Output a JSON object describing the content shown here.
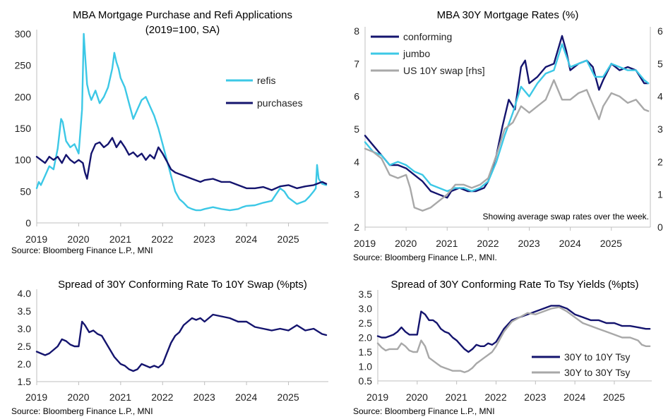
{
  "chart_data": [
    {
      "id": "c1",
      "type": "line",
      "title_lines": [
        "MBA Mortgage Purchase and Refi Applications",
        "(2019=100, SA)"
      ],
      "source": "Source: Bloomberg Finance L.P., MNI",
      "xlim": [
        2019,
        2025.95
      ],
      "xticks": [
        "2019",
        "2020",
        "2021",
        "2022",
        "2023",
        "2024",
        "2025"
      ],
      "ylim": [
        0,
        300
      ],
      "yticks": [
        0,
        50,
        100,
        150,
        200,
        250,
        300
      ],
      "grid": false,
      "legend_position": "top-right",
      "series": [
        {
          "name": "refis",
          "color": "#3cc8e6",
          "x": [
            2019.0,
            2019.05,
            2019.1,
            2019.2,
            2019.3,
            2019.4,
            2019.5,
            2019.58,
            2019.62,
            2019.7,
            2019.8,
            2019.9,
            2020.0,
            2020.08,
            2020.12,
            2020.15,
            2020.2,
            2020.25,
            2020.3,
            2020.4,
            2020.5,
            2020.6,
            2020.7,
            2020.8,
            2020.85,
            2020.9,
            2020.95,
            2021.0,
            2021.1,
            2021.2,
            2021.3,
            2021.4,
            2021.5,
            2021.6,
            2021.7,
            2021.8,
            2021.9,
            2022.0,
            2022.1,
            2022.2,
            2022.3,
            2022.4,
            2022.5,
            2022.6,
            2022.7,
            2022.8,
            2022.9,
            2023.0,
            2023.2,
            2023.4,
            2023.6,
            2023.8,
            2023.9,
            2024.0,
            2024.2,
            2024.4,
            2024.6,
            2024.7,
            2024.8,
            2024.9,
            2025.0,
            2025.2,
            2025.4,
            2025.5,
            2025.6,
            2025.65,
            2025.68,
            2025.72,
            2025.8,
            2025.9
          ],
          "y": [
            55,
            65,
            60,
            75,
            90,
            85,
            118,
            165,
            160,
            130,
            120,
            125,
            110,
            180,
            300,
            270,
            220,
            205,
            195,
            210,
            190,
            200,
            215,
            245,
            270,
            255,
            245,
            230,
            215,
            190,
            165,
            180,
            195,
            200,
            185,
            170,
            150,
            125,
            100,
            75,
            50,
            38,
            32,
            25,
            22,
            20,
            20,
            22,
            25,
            22,
            20,
            22,
            25,
            27,
            28,
            32,
            35,
            45,
            55,
            50,
            40,
            30,
            35,
            42,
            50,
            55,
            92,
            70,
            62,
            60
          ]
        },
        {
          "name": "purchases",
          "color": "#14146e",
          "x": [
            2019.0,
            2019.1,
            2019.2,
            2019.3,
            2019.4,
            2019.5,
            2019.6,
            2019.7,
            2019.8,
            2019.9,
            2020.0,
            2020.1,
            2020.15,
            2020.2,
            2020.3,
            2020.4,
            2020.5,
            2020.6,
            2020.7,
            2020.8,
            2020.9,
            2021.0,
            2021.1,
            2021.2,
            2021.3,
            2021.4,
            2021.5,
            2021.6,
            2021.7,
            2021.8,
            2021.9,
            2022.0,
            2022.1,
            2022.2,
            2022.3,
            2022.5,
            2022.7,
            2022.9,
            2023.0,
            2023.2,
            2023.4,
            2023.6,
            2023.8,
            2024.0,
            2024.2,
            2024.4,
            2024.6,
            2024.8,
            2025.0,
            2025.2,
            2025.4,
            2025.6,
            2025.8,
            2025.9
          ],
          "y": [
            105,
            100,
            95,
            105,
            100,
            105,
            95,
            108,
            100,
            95,
            100,
            95,
            80,
            70,
            110,
            125,
            128,
            120,
            125,
            135,
            120,
            130,
            120,
            108,
            112,
            105,
            110,
            100,
            108,
            102,
            120,
            110,
            98,
            85,
            80,
            75,
            70,
            65,
            68,
            70,
            65,
            65,
            60,
            55,
            55,
            57,
            52,
            58,
            60,
            55,
            58,
            60,
            65,
            62
          ]
        }
      ]
    },
    {
      "id": "c2",
      "type": "line",
      "title_lines": [
        "MBA 30Y Mortgage Rates (%)"
      ],
      "source": "Source: Bloomberg Finance L.P., MNI.",
      "note": "Showing average swap rates over the week.",
      "xlim": [
        2019,
        2025.95
      ],
      "xticks": [
        "2019",
        "2020",
        "2021",
        "2022",
        "2023",
        "2024",
        "2025"
      ],
      "ylim": [
        2,
        8
      ],
      "yticks": [
        2,
        3,
        4,
        5,
        6,
        7,
        8
      ],
      "y2lim": [
        0,
        6
      ],
      "y2ticks": [
        0,
        1,
        2,
        3,
        4,
        5,
        6
      ],
      "grid": false,
      "legend_position": "top-left",
      "series": [
        {
          "name": "conforming",
          "color": "#14146e",
          "axis": "left",
          "x": [
            2019.0,
            2019.2,
            2019.4,
            2019.6,
            2019.8,
            2020.0,
            2020.2,
            2020.4,
            2020.6,
            2020.8,
            2021.0,
            2021.1,
            2021.3,
            2021.5,
            2021.7,
            2021.9,
            2022.0,
            2022.2,
            2022.35,
            2022.5,
            2022.65,
            2022.8,
            2022.9,
            2023.0,
            2023.2,
            2023.4,
            2023.6,
            2023.8,
            2023.9,
            2024.0,
            2024.2,
            2024.4,
            2024.55,
            2024.7,
            2024.8,
            2025.0,
            2025.2,
            2025.4,
            2025.6,
            2025.8,
            2025.9
          ],
          "y": [
            4.8,
            4.5,
            4.2,
            3.9,
            3.9,
            3.8,
            3.6,
            3.4,
            3.1,
            3.0,
            2.9,
            3.1,
            3.2,
            3.1,
            3.1,
            3.2,
            3.4,
            4.2,
            5.1,
            5.9,
            5.6,
            6.9,
            7.1,
            6.4,
            6.6,
            6.9,
            7.0,
            7.85,
            7.4,
            6.8,
            7.0,
            7.1,
            6.9,
            6.2,
            6.5,
            7.0,
            6.8,
            6.9,
            6.8,
            6.4,
            6.4
          ]
        },
        {
          "name": "jumbo",
          "color": "#3cc8e6",
          "axis": "left",
          "x": [
            2019.0,
            2019.2,
            2019.4,
            2019.6,
            2019.8,
            2020.0,
            2020.2,
            2020.4,
            2020.6,
            2020.8,
            2021.0,
            2021.2,
            2021.4,
            2021.6,
            2021.8,
            2022.0,
            2022.2,
            2022.4,
            2022.6,
            2022.8,
            2023.0,
            2023.2,
            2023.4,
            2023.6,
            2023.8,
            2024.0,
            2024.2,
            2024.4,
            2024.6,
            2024.8,
            2025.0,
            2025.2,
            2025.4,
            2025.6,
            2025.8,
            2025.9
          ],
          "y": [
            4.6,
            4.3,
            4.2,
            3.9,
            4.0,
            3.9,
            3.7,
            3.6,
            3.3,
            3.2,
            3.1,
            3.2,
            3.2,
            3.1,
            3.2,
            3.4,
            4.0,
            4.8,
            5.5,
            6.3,
            6.0,
            6.4,
            6.7,
            6.8,
            7.6,
            6.9,
            7.0,
            7.1,
            6.6,
            6.6,
            7.0,
            6.9,
            6.8,
            6.8,
            6.5,
            6.4
          ]
        },
        {
          "name": "US 10Y swap [rhs]",
          "color": "#a8a8a8",
          "axis": "right",
          "x": [
            2019.0,
            2019.2,
            2019.4,
            2019.6,
            2019.8,
            2020.0,
            2020.1,
            2020.2,
            2020.4,
            2020.6,
            2020.8,
            2021.0,
            2021.2,
            2021.4,
            2021.6,
            2021.8,
            2022.0,
            2022.2,
            2022.4,
            2022.6,
            2022.8,
            2023.0,
            2023.2,
            2023.4,
            2023.6,
            2023.8,
            2024.0,
            2024.2,
            2024.4,
            2024.6,
            2024.7,
            2024.8,
            2025.0,
            2025.2,
            2025.4,
            2025.6,
            2025.8,
            2025.9
          ],
          "y": [
            2.4,
            2.3,
            2.1,
            1.6,
            1.5,
            1.6,
            1.2,
            0.6,
            0.5,
            0.6,
            0.8,
            1.0,
            1.3,
            1.3,
            1.2,
            1.3,
            1.5,
            2.2,
            3.0,
            3.2,
            3.7,
            3.5,
            3.7,
            3.9,
            4.5,
            3.9,
            3.9,
            4.1,
            4.2,
            3.6,
            3.3,
            3.7,
            4.1,
            4.0,
            3.8,
            3.9,
            3.6,
            3.55
          ]
        }
      ]
    },
    {
      "id": "c3",
      "type": "line",
      "title_lines": [
        "Spread of 30Y Conforming Rate To 10Y Swap (%pts)"
      ],
      "source": "Source: Bloomberg Finance L.P., MNI",
      "xlim": [
        2019,
        2025.95
      ],
      "xticks": [
        "2019",
        "2020",
        "2021",
        "2022",
        "2023",
        "2024",
        "2025"
      ],
      "ylim": [
        1.5,
        4.0
      ],
      "yticks": [
        "1.5",
        "2.0",
        "2.5",
        "3.0",
        "3.5",
        "4.0"
      ],
      "grid": false,
      "series": [
        {
          "name": "",
          "color": "#14146e",
          "x": [
            2019.0,
            2019.1,
            2019.2,
            2019.3,
            2019.4,
            2019.5,
            2019.6,
            2019.7,
            2019.8,
            2019.9,
            2020.0,
            2020.08,
            2020.15,
            2020.25,
            2020.35,
            2020.45,
            2020.55,
            2020.7,
            2020.85,
            2021.0,
            2021.1,
            2021.2,
            2021.3,
            2021.4,
            2021.5,
            2021.6,
            2021.7,
            2021.8,
            2021.9,
            2022.0,
            2022.1,
            2022.2,
            2022.3,
            2022.4,
            2022.5,
            2022.6,
            2022.7,
            2022.8,
            2022.9,
            2023.0,
            2023.2,
            2023.4,
            2023.6,
            2023.8,
            2024.0,
            2024.2,
            2024.4,
            2024.6,
            2024.8,
            2025.0,
            2025.2,
            2025.4,
            2025.6,
            2025.8,
            2025.9
          ],
          "y": [
            2.35,
            2.3,
            2.25,
            2.3,
            2.4,
            2.5,
            2.7,
            2.65,
            2.55,
            2.5,
            2.5,
            3.2,
            3.1,
            2.9,
            2.95,
            2.85,
            2.8,
            2.5,
            2.2,
            2.0,
            1.95,
            1.85,
            1.8,
            1.85,
            2.0,
            1.95,
            1.9,
            1.95,
            1.9,
            2.0,
            2.3,
            2.6,
            2.8,
            2.9,
            3.1,
            3.2,
            3.3,
            3.25,
            3.3,
            3.2,
            3.4,
            3.35,
            3.3,
            3.2,
            3.2,
            3.05,
            3.0,
            2.95,
            3.0,
            2.95,
            3.1,
            2.95,
            3.0,
            2.85,
            2.82
          ]
        }
      ]
    },
    {
      "id": "c4",
      "type": "line",
      "title_lines": [
        "Spread of 30Y Conforming Rate To Tsy Yields (%pts)"
      ],
      "source": "Source: Bloomberg Finance L.P., MNI",
      "xlim": [
        2019,
        2025.95
      ],
      "xticks": [
        "2019",
        "2020",
        "2021",
        "2022",
        "2023",
        "2024",
        "2025"
      ],
      "ylim": [
        0.5,
        3.5
      ],
      "yticks": [
        "0.5",
        "1.0",
        "1.5",
        "2.0",
        "2.5",
        "3.0",
        "3.5"
      ],
      "grid": false,
      "legend_position": "bottom-right",
      "series": [
        {
          "name": "30Y to 10Y Tsy",
          "color": "#14146e",
          "x": [
            2019.0,
            2019.1,
            2019.2,
            2019.3,
            2019.4,
            2019.5,
            2019.6,
            2019.7,
            2019.8,
            2019.9,
            2020.0,
            2020.1,
            2020.2,
            2020.3,
            2020.4,
            2020.5,
            2020.6,
            2020.7,
            2020.8,
            2020.9,
            2021.0,
            2021.1,
            2021.2,
            2021.3,
            2021.4,
            2021.5,
            2021.6,
            2021.7,
            2021.8,
            2021.9,
            2022.0,
            2022.2,
            2022.4,
            2022.6,
            2022.8,
            2023.0,
            2023.2,
            2023.4,
            2023.6,
            2023.8,
            2024.0,
            2024.2,
            2024.4,
            2024.6,
            2024.8,
            2025.0,
            2025.2,
            2025.4,
            2025.6,
            2025.8,
            2025.9
          ],
          "y": [
            2.05,
            2.0,
            2.0,
            2.05,
            2.1,
            2.2,
            2.35,
            2.2,
            2.1,
            2.1,
            2.1,
            2.9,
            2.8,
            2.6,
            2.6,
            2.5,
            2.3,
            2.2,
            2.15,
            2.0,
            1.9,
            1.75,
            1.6,
            1.5,
            1.6,
            1.75,
            1.7,
            1.7,
            1.8,
            1.75,
            1.85,
            2.3,
            2.6,
            2.7,
            2.8,
            2.9,
            3.0,
            3.1,
            3.1,
            3.0,
            2.8,
            2.7,
            2.6,
            2.6,
            2.5,
            2.5,
            2.4,
            2.4,
            2.35,
            2.3,
            2.3
          ]
        },
        {
          "name": "30Y to 30Y Tsy",
          "color": "#a8a8a8",
          "x": [
            2019.0,
            2019.1,
            2019.2,
            2019.3,
            2019.4,
            2019.5,
            2019.6,
            2019.7,
            2019.8,
            2019.9,
            2020.0,
            2020.1,
            2020.2,
            2020.3,
            2020.4,
            2020.5,
            2020.6,
            2020.7,
            2020.8,
            2020.9,
            2021.0,
            2021.1,
            2021.2,
            2021.3,
            2021.4,
            2021.5,
            2021.6,
            2021.7,
            2021.8,
            2021.9,
            2022.0,
            2022.2,
            2022.4,
            2022.6,
            2022.8,
            2023.0,
            2023.2,
            2023.4,
            2023.6,
            2023.8,
            2024.0,
            2024.2,
            2024.4,
            2024.6,
            2024.8,
            2025.0,
            2025.2,
            2025.4,
            2025.6,
            2025.7,
            2025.8,
            2025.9
          ],
          "y": [
            1.8,
            1.65,
            1.55,
            1.6,
            1.6,
            1.6,
            1.8,
            1.7,
            1.55,
            1.5,
            1.5,
            1.9,
            1.7,
            1.3,
            1.2,
            1.1,
            1.0,
            0.95,
            0.9,
            0.85,
            0.85,
            0.85,
            0.8,
            0.85,
            0.95,
            1.1,
            1.2,
            1.3,
            1.4,
            1.5,
            1.7,
            2.2,
            2.55,
            2.7,
            2.85,
            2.8,
            2.9,
            3.0,
            3.05,
            2.9,
            2.7,
            2.5,
            2.4,
            2.3,
            2.2,
            2.1,
            2.0,
            2.0,
            1.9,
            1.75,
            1.7,
            1.7
          ]
        }
      ]
    }
  ]
}
